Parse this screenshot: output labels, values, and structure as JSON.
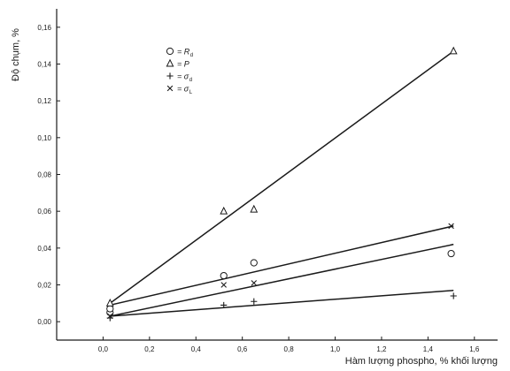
{
  "chart_data": {
    "type": "scatter",
    "xlabel": "Hàm lượng phospho, % khối lượng",
    "ylabel": "Độ chụm, %",
    "xlim": [
      -0.2,
      1.7
    ],
    "ylim": [
      -0.01,
      0.17
    ],
    "x_ticks": [
      "0,0",
      "0,2",
      "0,4",
      "0,6",
      "0,8",
      "1,0",
      "1,2",
      "1,4",
      "1,6"
    ],
    "y_ticks": [
      "0,00",
      "0,02",
      "0,04",
      "0,06",
      "0,08",
      "0,10",
      "0,12",
      "0,14",
      "0,16"
    ],
    "grid": false,
    "legend_position": "top-left",
    "series": [
      {
        "name": "R",
        "subscript": "d",
        "marker": "circle",
        "points": [
          [
            0.03,
            0.005
          ],
          [
            0.03,
            0.007
          ],
          [
            0.52,
            0.025
          ],
          [
            0.65,
            0.032
          ],
          [
            1.5,
            0.037
          ]
        ],
        "fit": [
          [
            0.03,
            0.003
          ],
          [
            1.51,
            0.042
          ]
        ]
      },
      {
        "name": "P",
        "subscript": "",
        "marker": "triangle",
        "points": [
          [
            0.03,
            0.01
          ],
          [
            0.52,
            0.06
          ],
          [
            0.65,
            0.061
          ],
          [
            1.51,
            0.147
          ]
        ],
        "fit": [
          [
            0.03,
            0.01
          ],
          [
            1.51,
            0.147
          ]
        ]
      },
      {
        "name": "σ",
        "subscript": "d",
        "marker": "plus",
        "points": [
          [
            0.03,
            0.002
          ],
          [
            0.52,
            0.009
          ],
          [
            0.65,
            0.011
          ],
          [
            1.51,
            0.014
          ]
        ],
        "fit": [
          [
            0.03,
            0.003
          ],
          [
            1.51,
            0.017
          ]
        ]
      },
      {
        "name": "σ",
        "subscript": "L",
        "marker": "cross",
        "points": [
          [
            0.03,
            0.003
          ],
          [
            0.52,
            0.02
          ],
          [
            0.65,
            0.021
          ],
          [
            1.5,
            0.052
          ]
        ],
        "fit": [
          [
            0.03,
            0.009
          ],
          [
            1.51,
            0.052
          ]
        ]
      }
    ]
  }
}
